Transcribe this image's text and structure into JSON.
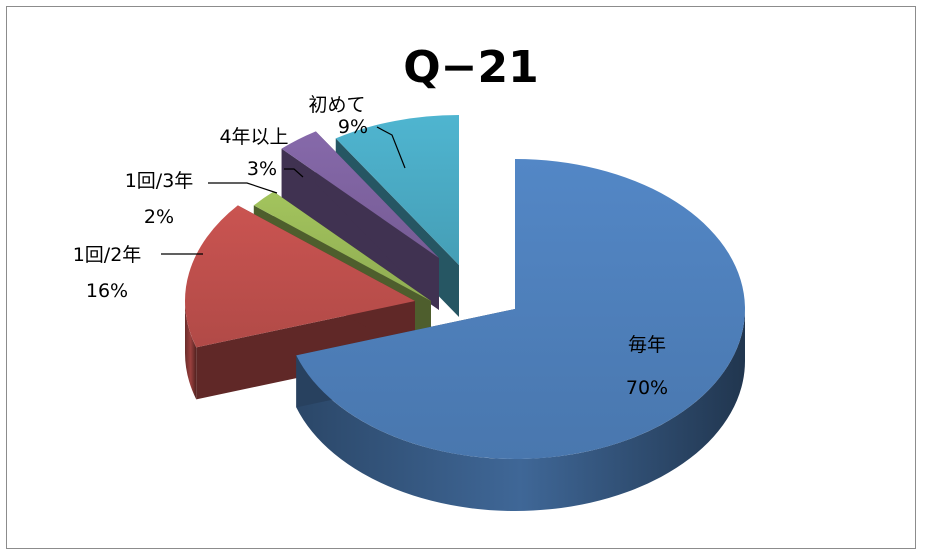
{
  "chart_data": {
    "type": "pie",
    "title": "Q−21",
    "variant": "3d-exploded",
    "categories": [
      "毎年",
      "1回/2年",
      "1回/3年",
      "4年以上",
      "初めて"
    ],
    "values": [
      70,
      16,
      2,
      3,
      9
    ],
    "value_labels": [
      "70%",
      "16%",
      "2%",
      "3%",
      "9%"
    ],
    "colors": [
      "#4f81bd",
      "#c0504d",
      "#9bbb59",
      "#8064a2",
      "#4bacc6"
    ],
    "legend": "none",
    "grid": false
  }
}
